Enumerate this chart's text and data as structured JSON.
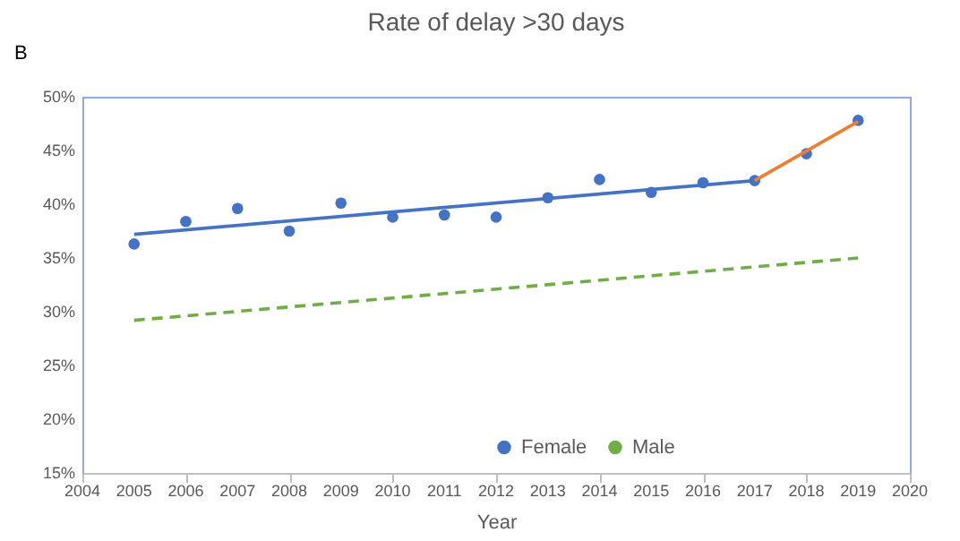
{
  "chart_data": {
    "type": "scatter",
    "title": "Rate of delay >30 days",
    "xlabel": "Year",
    "annotations": [
      "B"
    ],
    "x": [
      2005,
      2006,
      2007,
      2008,
      2009,
      2010,
      2011,
      2012,
      2013,
      2014,
      2015,
      2016,
      2017,
      2018,
      2019
    ],
    "series": [
      {
        "name": "Female",
        "color": "#4472c4",
        "values": [
          36.3,
          38.4,
          39.6,
          37.5,
          40.1,
          38.8,
          39.0,
          38.8,
          40.6,
          42.3,
          41.1,
          42.0,
          42.2,
          44.7,
          47.8
        ]
      },
      {
        "type": "line",
        "marker": "none",
        "color": "#4472c4",
        "x": [
          2005,
          2017
        ],
        "values": [
          37.2,
          42.2
        ]
      },
      {
        "type": "line",
        "marker": "none",
        "color": "#ed7d31",
        "x": [
          2017,
          2019
        ],
        "values": [
          42.2,
          47.7
        ]
      },
      {
        "name": "Male",
        "type": "line",
        "marker": "none",
        "line_style": "dashed",
        "color": "#70ad47",
        "x": [
          2005,
          2019
        ],
        "values": [
          29.2,
          35.0
        ]
      }
    ],
    "xlim": [
      2004,
      2020
    ],
    "xticks": [
      2004,
      2005,
      2006,
      2007,
      2008,
      2009,
      2010,
      2011,
      2012,
      2013,
      2014,
      2015,
      2016,
      2017,
      2018,
      2019,
      2020
    ],
    "ylim": [
      15,
      50
    ],
    "yticks": [
      {
        "value": 15,
        "label": "15%"
      },
      {
        "value": 20,
        "label": "20%"
      },
      {
        "value": 25,
        "label": "25%"
      },
      {
        "value": 30,
        "label": "30%"
      },
      {
        "value": 35,
        "label": "35%"
      },
      {
        "value": 40,
        "label": "40%"
      },
      {
        "value": 45,
        "label": "45%"
      },
      {
        "value": 50,
        "label": "50%"
      }
    ],
    "grid": false,
    "legend": "bottom",
    "marker": "circle"
  }
}
